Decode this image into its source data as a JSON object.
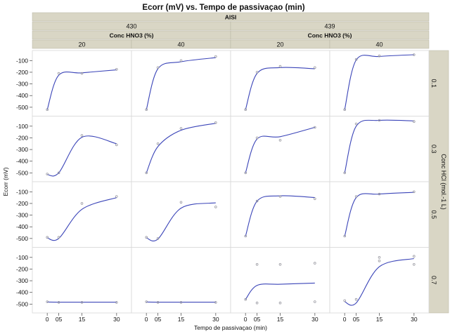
{
  "title": "Ecorr (mV) vs. Tempo de passivaçao (min)",
  "outer_factor": "AISI",
  "outer_levels": [
    "430",
    "439"
  ],
  "inner_factor": "Conc HNO3 (%)",
  "inner_levels": [
    "20",
    "40"
  ],
  "row_factor": "Conc HCl (mol*L-1)",
  "row_factor_display": "Conc HCl (mol.-1 L)",
  "row_levels": [
    "0.1",
    "0.3",
    "0.5",
    "0.7"
  ],
  "xlabel": "Tempo de passivaçao (min)",
  "ylabel": "Ecorr (mV)",
  "colors": {
    "line": "#3a44b8",
    "point": "#9a9aa2",
    "header_bg": "#d9d6c5",
    "grid": "#d8d8d8"
  },
  "chart_data": {
    "type": "scatter",
    "x_ticks": [
      "0",
      "05",
      "15",
      "30"
    ],
    "x_values": [
      0,
      5,
      15,
      30
    ],
    "y_ticks": [
      "-100",
      "-200",
      "-300",
      "-400",
      "-500"
    ],
    "ylim": [
      -540,
      -50
    ],
    "xlim": [
      -4,
      34
    ],
    "panels": [
      {
        "aisi": "430",
        "hno3": "20",
        "hcl": "0.1",
        "points": [
          [
            0,
            -520
          ],
          [
            5,
            -210
          ],
          [
            15,
            -210
          ],
          [
            30,
            -175
          ]
        ],
        "curve": [
          -520,
          -225,
          -205,
          -180
        ]
      },
      {
        "aisi": "430",
        "hno3": "40",
        "hcl": "0.1",
        "points": [
          [
            0,
            -520
          ],
          [
            5,
            -160
          ],
          [
            15,
            -100
          ],
          [
            30,
            -65
          ]
        ],
        "curve": [
          -520,
          -170,
          -110,
          -75
        ]
      },
      {
        "aisi": "439",
        "hno3": "20",
        "hcl": "0.1",
        "points": [
          [
            0,
            -520
          ],
          [
            5,
            -200
          ],
          [
            15,
            -150
          ],
          [
            30,
            -160
          ]
        ],
        "curve": [
          -520,
          -210,
          -160,
          -170
        ]
      },
      {
        "aisi": "439",
        "hno3": "40",
        "hcl": "0.1",
        "points": [
          [
            0,
            -520
          ],
          [
            5,
            -90
          ],
          [
            15,
            -60
          ],
          [
            30,
            -50
          ]
        ],
        "curve": [
          -520,
          -95,
          -65,
          -50
        ]
      },
      {
        "aisi": "430",
        "hno3": "20",
        "hcl": "0.3",
        "points": [
          [
            0,
            -510
          ],
          [
            5,
            -500
          ],
          [
            15,
            -180
          ],
          [
            30,
            -260
          ]
        ],
        "curve": [
          -515,
          -500,
          -195,
          -250
        ]
      },
      {
        "aisi": "430",
        "hno3": "40",
        "hcl": "0.3",
        "points": [
          [
            0,
            -500
          ],
          [
            5,
            -250
          ],
          [
            15,
            -120
          ],
          [
            30,
            -70
          ]
        ],
        "curve": [
          -500,
          -275,
          -135,
          -75
        ]
      },
      {
        "aisi": "439",
        "hno3": "20",
        "hcl": "0.3",
        "points": [
          [
            0,
            -500
          ],
          [
            5,
            -200
          ],
          [
            15,
            -220
          ],
          [
            30,
            -110
          ]
        ],
        "curve": [
          -500,
          -210,
          -190,
          -110
        ]
      },
      {
        "aisi": "439",
        "hno3": "40",
        "hcl": "0.3",
        "points": [
          [
            0,
            -500
          ],
          [
            5,
            -80
          ],
          [
            15,
            -50
          ],
          [
            30,
            -60
          ]
        ],
        "curve": [
          -500,
          -100,
          -50,
          -55
        ]
      },
      {
        "aisi": "430",
        "hno3": "20",
        "hcl": "0.5",
        "points": [
          [
            0,
            -490
          ],
          [
            5,
            -490
          ],
          [
            15,
            -200
          ],
          [
            30,
            -140
          ]
        ],
        "curve": [
          -495,
          -500,
          -250,
          -150
        ]
      },
      {
        "aisi": "430",
        "hno3": "40",
        "hcl": "0.5",
        "points": [
          [
            0,
            -490
          ],
          [
            5,
            -500
          ],
          [
            15,
            -190
          ],
          [
            30,
            -230
          ]
        ],
        "curve": [
          -495,
          -505,
          -240,
          -195
        ]
      },
      {
        "aisi": "439",
        "hno3": "20",
        "hcl": "0.5",
        "points": [
          [
            0,
            -480
          ],
          [
            5,
            -180
          ],
          [
            15,
            -140
          ],
          [
            30,
            -160
          ]
        ],
        "curve": [
          -480,
          -180,
          -135,
          -150
        ]
      },
      {
        "aisi": "439",
        "hno3": "40",
        "hcl": "0.5",
        "points": [
          [
            0,
            -480
          ],
          [
            5,
            -140
          ],
          [
            15,
            -120
          ],
          [
            30,
            -100
          ]
        ],
        "curve": [
          -480,
          -150,
          -120,
          -105
        ]
      },
      {
        "aisi": "430",
        "hno3": "20",
        "hcl": "0.7",
        "points": [
          [
            0,
            -480
          ],
          [
            5,
            -485
          ],
          [
            15,
            -485
          ],
          [
            30,
            -485
          ]
        ],
        "curve": [
          -482,
          -484,
          -484,
          -484
        ]
      },
      {
        "aisi": "430",
        "hno3": "40",
        "hcl": "0.7",
        "points": [
          [
            0,
            -480
          ],
          [
            5,
            -485
          ],
          [
            15,
            -485
          ],
          [
            30,
            -485
          ]
        ],
        "curve": [
          -482,
          -484,
          -484,
          -484
        ]
      },
      {
        "aisi": "439",
        "hno3": "20",
        "hcl": "0.7",
        "points": [
          [
            0,
            -460
          ],
          [
            5,
            -160
          ],
          [
            5,
            -490
          ],
          [
            15,
            -160
          ],
          [
            15,
            -490
          ],
          [
            30,
            -150
          ],
          [
            30,
            -480
          ]
        ],
        "curve": [
          -460,
          -340,
          -330,
          -320
        ]
      },
      {
        "aisi": "439",
        "hno3": "40",
        "hcl": "0.7",
        "points": [
          [
            0,
            -470
          ],
          [
            5,
            -460
          ],
          [
            15,
            -130
          ],
          [
            15,
            -100
          ],
          [
            30,
            -160
          ],
          [
            30,
            -90
          ]
        ],
        "curve": [
          -480,
          -490,
          -180,
          -110
        ]
      }
    ]
  }
}
